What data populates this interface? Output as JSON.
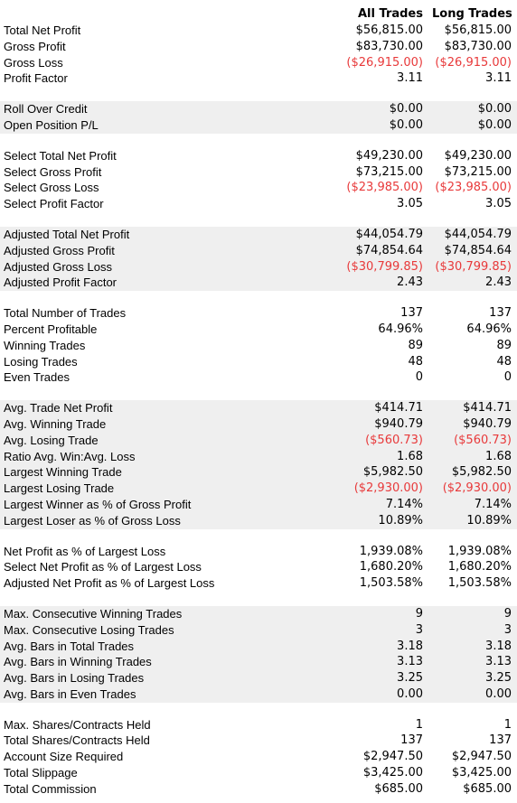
{
  "header": {
    "col_all": "All Trades",
    "col_long": "Long Trades"
  },
  "sections": [
    {
      "shaded": false,
      "rows": [
        {
          "label": "Total Net Profit",
          "all": "$56,815.00",
          "long": "$56,815.00",
          "neg": false
        },
        {
          "label": "Gross Profit",
          "all": "$83,730.00",
          "long": "$83,730.00",
          "neg": false
        },
        {
          "label": "Gross Loss",
          "all": "($26,915.00)",
          "long": "($26,915.00)",
          "neg": true
        },
        {
          "label": "Profit Factor",
          "all": "3.11",
          "long": "3.11",
          "neg": false
        }
      ]
    },
    {
      "shaded": true,
      "rows": [
        {
          "label": "Roll Over Credit",
          "all": "$0.00",
          "long": "$0.00",
          "neg": false
        },
        {
          "label": "Open Position P/L",
          "all": "$0.00",
          "long": "$0.00",
          "neg": false
        }
      ]
    },
    {
      "shaded": false,
      "rows": [
        {
          "label": "Select Total Net Profit",
          "all": "$49,230.00",
          "long": "$49,230.00",
          "neg": false
        },
        {
          "label": "Select Gross Profit",
          "all": "$73,215.00",
          "long": "$73,215.00",
          "neg": false
        },
        {
          "label": "Select Gross Loss",
          "all": "($23,985.00)",
          "long": "($23,985.00)",
          "neg": true
        },
        {
          "label": "Select Profit Factor",
          "all": "3.05",
          "long": "3.05",
          "neg": false
        }
      ]
    },
    {
      "shaded": true,
      "rows": [
        {
          "label": "Adjusted Total Net Profit",
          "all": "$44,054.79",
          "long": "$44,054.79",
          "neg": false
        },
        {
          "label": "Adjusted Gross Profit",
          "all": "$74,854.64",
          "long": "$74,854.64",
          "neg": false
        },
        {
          "label": "Adjusted Gross Loss",
          "all": "($30,799.85)",
          "long": "($30,799.85)",
          "neg": true
        },
        {
          "label": "Adjusted Profit Factor",
          "all": "2.43",
          "long": "2.43",
          "neg": false
        }
      ]
    },
    {
      "shaded": false,
      "rows": [
        {
          "label": "Total Number of Trades",
          "all": "137",
          "long": "137",
          "neg": false
        },
        {
          "label": "Percent Profitable",
          "all": "64.96%",
          "long": "64.96%",
          "neg": false
        },
        {
          "label": "Winning Trades",
          "all": "89",
          "long": "89",
          "neg": false
        },
        {
          "label": "Losing Trades",
          "all": "48",
          "long": "48",
          "neg": false
        },
        {
          "label": "Even Trades",
          "all": "0",
          "long": "0",
          "neg": false
        }
      ]
    },
    {
      "shaded": true,
      "rows": [
        {
          "label": "Avg. Trade Net Profit",
          "all": "$414.71",
          "long": "$414.71",
          "neg": false
        },
        {
          "label": "Avg. Winning Trade",
          "all": "$940.79",
          "long": "$940.79",
          "neg": false
        },
        {
          "label": "Avg. Losing Trade",
          "all": "($560.73)",
          "long": "($560.73)",
          "neg": true
        },
        {
          "label": "Ratio Avg. Win:Avg. Loss",
          "all": "1.68",
          "long": "1.68",
          "neg": false
        },
        {
          "label": "Largest Winning Trade",
          "all": "$5,982.50",
          "long": "$5,982.50",
          "neg": false
        },
        {
          "label": "Largest Losing Trade",
          "all": "($2,930.00)",
          "long": "($2,930.00)",
          "neg": true
        },
        {
          "label": "Largest Winner as % of Gross Profit",
          "all": "7.14%",
          "long": "7.14%",
          "neg": false
        },
        {
          "label": "Largest Loser as % of Gross Loss",
          "all": "10.89%",
          "long": "10.89%",
          "neg": false
        }
      ]
    },
    {
      "shaded": false,
      "rows": [
        {
          "label": "Net Profit as % of Largest Loss",
          "all": "1,939.08%",
          "long": "1,939.08%",
          "neg": false
        },
        {
          "label": "Select Net Profit as % of Largest Loss",
          "all": "1,680.20%",
          "long": "1,680.20%",
          "neg": false
        },
        {
          "label": "Adjusted Net Profit as % of Largest Loss",
          "all": "1,503.58%",
          "long": "1,503.58%",
          "neg": false
        }
      ]
    },
    {
      "shaded": true,
      "rows": [
        {
          "label": "Max. Consecutive Winning Trades",
          "all": "9",
          "long": "9",
          "neg": false
        },
        {
          "label": "Max. Consecutive Losing Trades",
          "all": "3",
          "long": "3",
          "neg": false
        },
        {
          "label": "Avg. Bars in Total Trades",
          "all": "3.18",
          "long": "3.18",
          "neg": false
        },
        {
          "label": "Avg. Bars in Winning Trades",
          "all": "3.13",
          "long": "3.13",
          "neg": false
        },
        {
          "label": "Avg. Bars in Losing Trades",
          "all": "3.25",
          "long": "3.25",
          "neg": false
        },
        {
          "label": "Avg. Bars in Even Trades",
          "all": "0.00",
          "long": "0.00",
          "neg": false
        }
      ]
    },
    {
      "shaded": false,
      "rows": [
        {
          "label": "Max. Shares/Contracts Held",
          "all": "1",
          "long": "1",
          "neg": false
        },
        {
          "label": "Total Shares/Contracts Held",
          "all": "137",
          "long": "137",
          "neg": false
        },
        {
          "label": "Account Size Required",
          "all": "$2,947.50",
          "long": "$2,947.50",
          "neg": false
        },
        {
          "label": "Total Slippage",
          "all": "$3,425.00",
          "long": "$3,425.00",
          "neg": false
        },
        {
          "label": "Total Commission",
          "all": "$685.00",
          "long": "$685.00",
          "neg": false
        }
      ]
    }
  ]
}
